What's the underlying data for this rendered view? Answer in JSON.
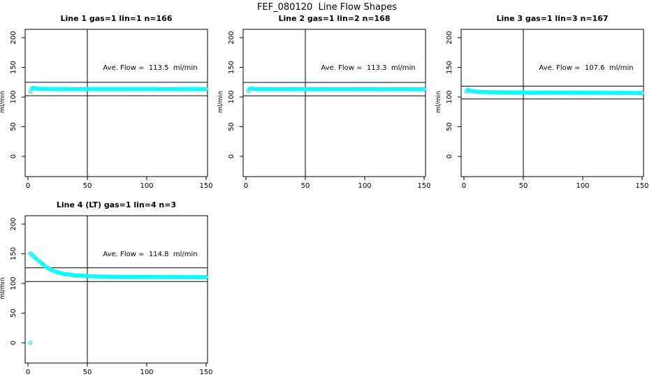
{
  "main_title": "FEF_080120  Line Flow Shapes",
  "colors": {
    "data_point": "#00ffff",
    "axis": "#000000",
    "reference_line": "#000000",
    "background": "#ffffff"
  },
  "axes": {
    "x_ticks": [
      0,
      50,
      100,
      150
    ],
    "y_ticks": [
      0,
      50,
      100,
      150,
      200
    ],
    "xlim": [
      0,
      155
    ],
    "ylim": [
      -30,
      215
    ],
    "y_label": "ml/min",
    "x_label": "",
    "vline_x": 50,
    "grid": false,
    "legend": "none"
  },
  "chart_data": [
    {
      "type": "scatter",
      "title": "Line 1 gas=1 lin=1 n=166",
      "n_points": 166,
      "ave_flow_ml_min": 113.5,
      "annotation": "Ave. Flow =  113.5  ml/min",
      "ylabel": "ml/min",
      "xlabel": "",
      "ref_lines": [
        102.2,
        124.9
      ],
      "vline_x": 50,
      "x_keypoints": [
        2,
        3,
        4,
        5,
        7,
        10,
        15,
        25,
        40,
        60,
        90,
        120,
        150
      ],
      "y_keypoints": [
        109,
        114.3,
        115.5,
        115.2,
        114.4,
        113.8,
        113.6,
        113.5,
        113.4,
        113.5,
        113.5,
        113.4,
        113.5
      ],
      "outlier_points": []
    },
    {
      "type": "scatter",
      "title": "Line 2 gas=1 lin=2 n=168",
      "n_points": 168,
      "ave_flow_ml_min": 113.3,
      "annotation": "Ave. Flow =  113.3  ml/min",
      "ylabel": "ml/min",
      "xlabel": "",
      "ref_lines": [
        102.0,
        124.6
      ],
      "vline_x": 50,
      "x_keypoints": [
        2,
        3,
        4,
        6,
        9,
        15,
        30,
        60,
        100,
        150
      ],
      "y_keypoints": [
        110.5,
        114.2,
        114.6,
        113.9,
        113.5,
        113.3,
        113.3,
        113.3,
        113.3,
        113.2
      ],
      "outlier_points": []
    },
    {
      "type": "scatter",
      "title": "Line 3 gas=1 lin=3 n=167",
      "n_points": 167,
      "ave_flow_ml_min": 107.6,
      "annotation": "Ave. Flow =  107.6  ml/min",
      "ylabel": "ml/min",
      "xlabel": "",
      "ref_lines": [
        96.8,
        118.4
      ],
      "vline_x": 50,
      "x_keypoints": [
        2,
        3,
        4,
        6,
        10,
        20,
        40,
        70,
        100,
        130,
        150
      ],
      "y_keypoints": [
        109.5,
        112.3,
        111.5,
        110.2,
        109.2,
        108.3,
        107.8,
        107.4,
        107.2,
        107.0,
        106.8
      ],
      "outlier_points": []
    },
    {
      "type": "scatter",
      "title": "Line 4 (LT) gas=1 lin=4 n=3",
      "n_points": 3,
      "ave_flow_ml_min": 114.8,
      "annotation": "Ave. Flow =  114.8  ml/min",
      "ylabel": "ml/min",
      "xlabel": "",
      "ref_lines": [
        103.3,
        126.3
      ],
      "vline_x": 50,
      "x_keypoints": [
        2,
        4,
        6,
        8,
        10,
        13,
        16,
        20,
        25,
        30,
        40,
        55,
        75,
        100,
        130,
        150
      ],
      "y_keypoints": [
        150.5,
        147,
        143.5,
        140,
        136.5,
        131.5,
        127,
        122.5,
        118.8,
        116.3,
        113.6,
        112,
        111.2,
        110.8,
        110.6,
        110.5
      ],
      "outlier_points": [
        [
          2,
          0
        ]
      ]
    }
  ]
}
